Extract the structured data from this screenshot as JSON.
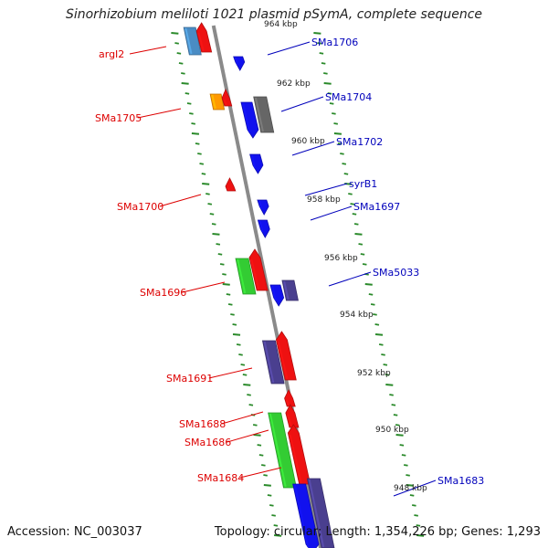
{
  "title": "Sinorhizobium meliloti 1021 plasmid pSymA, complete sequence",
  "footer": {
    "accession": "Accession: NC_003037",
    "summary": "Topology: circular; Length: 1,354,226 bp; Genes: 1,293"
  },
  "colors": {
    "backbone": "#8a8a8a",
    "tick": "#2a8a2a",
    "forward_label": "#dd0000",
    "reverse_label": "#0000bb",
    "red": "#ee1111",
    "blue": "#1111ee",
    "steelblue": "#4a8cc4",
    "orange": "#ff9900",
    "purple": "#4a3f8f",
    "gray": "#666666",
    "green": "#33cc33"
  },
  "scale_labels": [
    "964 kbp",
    "962 kbp",
    "960 kbp",
    "958 kbp",
    "956 kbp",
    "954 kbp",
    "952 kbp",
    "950 kbp",
    "948 kbp"
  ],
  "forward_genes": [
    {
      "label": "argI2"
    },
    {
      "label": "SMa1705"
    },
    {
      "label": "SMa1700"
    },
    {
      "label": "SMa1696"
    },
    {
      "label": "SMa1691"
    },
    {
      "label": "SMa1688"
    },
    {
      "label": "SMa1686"
    },
    {
      "label": "SMa1684"
    }
  ],
  "reverse_genes": [
    {
      "label": "SMa1706"
    },
    {
      "label": "SMa1704"
    },
    {
      "label": "SMa1702"
    },
    {
      "label": "syrB1"
    },
    {
      "label": "SMa1697"
    },
    {
      "label": "SMa5033"
    },
    {
      "label": "SMa1683"
    }
  ]
}
